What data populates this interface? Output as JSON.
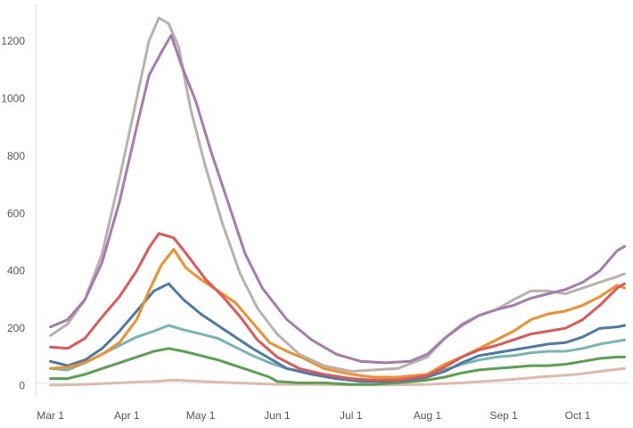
{
  "chart_data": {
    "type": "line",
    "title": "",
    "xlabel": "",
    "ylabel": "",
    "x_axis": {
      "scale": "date",
      "range": [
        "2020-02-24",
        "2020-10-22"
      ],
      "ticks": [
        {
          "date": "2020-03-01",
          "label": "Mar 1"
        },
        {
          "date": "2020-04-01",
          "label": "Apr 1"
        },
        {
          "date": "2020-05-01",
          "label": "May 1"
        },
        {
          "date": "2020-06-01",
          "label": "Jun 1"
        },
        {
          "date": "2020-07-01",
          "label": "Jul 1"
        },
        {
          "date": "2020-08-01",
          "label": "Aug 1"
        },
        {
          "date": "2020-09-01",
          "label": "Sep 1"
        },
        {
          "date": "2020-10-01",
          "label": "Oct 1"
        }
      ]
    },
    "y_axis": {
      "range": [
        -60,
        1330
      ],
      "ticks": [
        0,
        200,
        400,
        600,
        800,
        1000,
        1200
      ],
      "zero_line": "dotted"
    },
    "grid": false,
    "legend": "none",
    "series": [
      {
        "color": "#a77bac",
        "points": [
          [
            "2020-03-01",
            205
          ],
          [
            "2020-03-08",
            230
          ],
          [
            "2020-03-15",
            300
          ],
          [
            "2020-03-22",
            430
          ],
          [
            "2020-03-29",
            640
          ],
          [
            "2020-04-05",
            900
          ],
          [
            "2020-04-10",
            1080
          ],
          [
            "2020-04-15",
            1160
          ],
          [
            "2020-04-19",
            1220
          ],
          [
            "2020-04-23",
            1120
          ],
          [
            "2020-04-29",
            990
          ],
          [
            "2020-05-05",
            820
          ],
          [
            "2020-05-12",
            640
          ],
          [
            "2020-05-19",
            460
          ],
          [
            "2020-05-26",
            340
          ],
          [
            "2020-06-05",
            230
          ],
          [
            "2020-06-15",
            160
          ],
          [
            "2020-06-25",
            110
          ],
          [
            "2020-07-05",
            85
          ],
          [
            "2020-07-15",
            80
          ],
          [
            "2020-07-25",
            85
          ],
          [
            "2020-08-01",
            110
          ],
          [
            "2020-08-08",
            165
          ],
          [
            "2020-08-15",
            210
          ],
          [
            "2020-08-22",
            245
          ],
          [
            "2020-08-29",
            265
          ],
          [
            "2020-09-05",
            280
          ],
          [
            "2020-09-12",
            305
          ],
          [
            "2020-09-19",
            320
          ],
          [
            "2020-09-26",
            335
          ],
          [
            "2020-10-03",
            360
          ],
          [
            "2020-10-10",
            400
          ],
          [
            "2020-10-17",
            470
          ],
          [
            "2020-10-20",
            485
          ]
        ]
      },
      {
        "color": "#bab0ac",
        "points": [
          [
            "2020-03-01",
            175
          ],
          [
            "2020-03-08",
            215
          ],
          [
            "2020-03-15",
            300
          ],
          [
            "2020-03-22",
            460
          ],
          [
            "2020-03-29",
            720
          ],
          [
            "2020-04-05",
            1000
          ],
          [
            "2020-04-10",
            1200
          ],
          [
            "2020-04-14",
            1280
          ],
          [
            "2020-04-18",
            1260
          ],
          [
            "2020-04-22",
            1180
          ],
          [
            "2020-04-27",
            960
          ],
          [
            "2020-05-03",
            760
          ],
          [
            "2020-05-10",
            560
          ],
          [
            "2020-05-17",
            390
          ],
          [
            "2020-05-24",
            270
          ],
          [
            "2020-06-01",
            180
          ],
          [
            "2020-06-10",
            110
          ],
          [
            "2020-06-20",
            70
          ],
          [
            "2020-07-01",
            50
          ],
          [
            "2020-07-10",
            55
          ],
          [
            "2020-07-20",
            60
          ],
          [
            "2020-08-01",
            100
          ],
          [
            "2020-08-08",
            165
          ],
          [
            "2020-08-15",
            215
          ],
          [
            "2020-08-22",
            245
          ],
          [
            "2020-08-29",
            265
          ],
          [
            "2020-09-05",
            300
          ],
          [
            "2020-09-12",
            330
          ],
          [
            "2020-09-19",
            330
          ],
          [
            "2020-09-26",
            320
          ],
          [
            "2020-10-03",
            340
          ],
          [
            "2020-10-10",
            360
          ],
          [
            "2020-10-17",
            380
          ],
          [
            "2020-10-20",
            390
          ]
        ]
      },
      {
        "color": "#e15759",
        "points": [
          [
            "2020-03-01",
            135
          ],
          [
            "2020-03-08",
            130
          ],
          [
            "2020-03-15",
            165
          ],
          [
            "2020-03-22",
            240
          ],
          [
            "2020-03-29",
            310
          ],
          [
            "2020-04-05",
            400
          ],
          [
            "2020-04-10",
            480
          ],
          [
            "2020-04-14",
            530
          ],
          [
            "2020-04-20",
            515
          ],
          [
            "2020-04-26",
            450
          ],
          [
            "2020-05-03",
            370
          ],
          [
            "2020-05-10",
            310
          ],
          [
            "2020-05-17",
            240
          ],
          [
            "2020-05-24",
            160
          ],
          [
            "2020-06-01",
            100
          ],
          [
            "2020-06-10",
            60
          ],
          [
            "2020-06-20",
            40
          ],
          [
            "2020-07-01",
            25
          ],
          [
            "2020-07-10",
            20
          ],
          [
            "2020-07-20",
            20
          ],
          [
            "2020-08-01",
            35
          ],
          [
            "2020-08-08",
            65
          ],
          [
            "2020-08-15",
            100
          ],
          [
            "2020-08-22",
            125
          ],
          [
            "2020-08-29",
            140
          ],
          [
            "2020-09-05",
            160
          ],
          [
            "2020-09-12",
            180
          ],
          [
            "2020-09-19",
            190
          ],
          [
            "2020-09-26",
            200
          ],
          [
            "2020-10-03",
            230
          ],
          [
            "2020-10-10",
            280
          ],
          [
            "2020-10-17",
            340
          ],
          [
            "2020-10-20",
            355
          ]
        ]
      },
      {
        "color": "#f28e2b",
        "points": [
          [
            "2020-03-01",
            60
          ],
          [
            "2020-03-08",
            65
          ],
          [
            "2020-03-15",
            80
          ],
          [
            "2020-03-22",
            110
          ],
          [
            "2020-03-29",
            150
          ],
          [
            "2020-04-05",
            230
          ],
          [
            "2020-04-10",
            330
          ],
          [
            "2020-04-15",
            420
          ],
          [
            "2020-04-20",
            475
          ],
          [
            "2020-04-25",
            410
          ],
          [
            "2020-05-01",
            370
          ],
          [
            "2020-05-08",
            330
          ],
          [
            "2020-05-15",
            290
          ],
          [
            "2020-05-22",
            220
          ],
          [
            "2020-05-29",
            150
          ],
          [
            "2020-06-05",
            120
          ],
          [
            "2020-06-12",
            95
          ],
          [
            "2020-06-20",
            60
          ],
          [
            "2020-07-01",
            40
          ],
          [
            "2020-07-10",
            30
          ],
          [
            "2020-07-20",
            30
          ],
          [
            "2020-08-01",
            40
          ],
          [
            "2020-08-08",
            75
          ],
          [
            "2020-08-15",
            100
          ],
          [
            "2020-08-22",
            130
          ],
          [
            "2020-08-29",
            160
          ],
          [
            "2020-09-05",
            190
          ],
          [
            "2020-09-12",
            230
          ],
          [
            "2020-09-19",
            250
          ],
          [
            "2020-09-26",
            260
          ],
          [
            "2020-10-03",
            280
          ],
          [
            "2020-10-10",
            310
          ],
          [
            "2020-10-17",
            350
          ],
          [
            "2020-10-20",
            340
          ]
        ]
      },
      {
        "color": "#4e79a7",
        "points": [
          [
            "2020-03-01",
            85
          ],
          [
            "2020-03-08",
            70
          ],
          [
            "2020-03-15",
            90
          ],
          [
            "2020-03-22",
            130
          ],
          [
            "2020-03-29",
            190
          ],
          [
            "2020-04-05",
            260
          ],
          [
            "2020-04-12",
            330
          ],
          [
            "2020-04-18",
            355
          ],
          [
            "2020-04-24",
            300
          ],
          [
            "2020-05-01",
            250
          ],
          [
            "2020-05-08",
            210
          ],
          [
            "2020-05-15",
            170
          ],
          [
            "2020-05-22",
            130
          ],
          [
            "2020-05-29",
            95
          ],
          [
            "2020-06-05",
            60
          ],
          [
            "2020-06-15",
            40
          ],
          [
            "2020-06-25",
            25
          ],
          [
            "2020-07-05",
            15
          ],
          [
            "2020-07-15",
            15
          ],
          [
            "2020-07-25",
            20
          ],
          [
            "2020-08-01",
            30
          ],
          [
            "2020-08-08",
            50
          ],
          [
            "2020-08-15",
            80
          ],
          [
            "2020-08-22",
            105
          ],
          [
            "2020-08-29",
            115
          ],
          [
            "2020-09-05",
            125
          ],
          [
            "2020-09-12",
            135
          ],
          [
            "2020-09-19",
            145
          ],
          [
            "2020-09-26",
            150
          ],
          [
            "2020-10-03",
            170
          ],
          [
            "2020-10-10",
            200
          ],
          [
            "2020-10-17",
            205
          ],
          [
            "2020-10-20",
            210
          ]
        ]
      },
      {
        "color": "#76b7b2",
        "points": [
          [
            "2020-03-01",
            60
          ],
          [
            "2020-03-08",
            55
          ],
          [
            "2020-03-15",
            80
          ],
          [
            "2020-03-22",
            110
          ],
          [
            "2020-03-29",
            140
          ],
          [
            "2020-04-05",
            170
          ],
          [
            "2020-04-12",
            190
          ],
          [
            "2020-04-18",
            210
          ],
          [
            "2020-04-24",
            195
          ],
          [
            "2020-05-01",
            180
          ],
          [
            "2020-05-08",
            165
          ],
          [
            "2020-05-15",
            135
          ],
          [
            "2020-05-22",
            105
          ],
          [
            "2020-05-29",
            80
          ],
          [
            "2020-06-05",
            60
          ],
          [
            "2020-06-15",
            45
          ],
          [
            "2020-06-25",
            30
          ],
          [
            "2020-07-05",
            20
          ],
          [
            "2020-07-15",
            20
          ],
          [
            "2020-07-25",
            25
          ],
          [
            "2020-08-01",
            30
          ],
          [
            "2020-08-08",
            55
          ],
          [
            "2020-08-15",
            75
          ],
          [
            "2020-08-22",
            90
          ],
          [
            "2020-08-29",
            100
          ],
          [
            "2020-09-05",
            105
          ],
          [
            "2020-09-12",
            115
          ],
          [
            "2020-09-19",
            120
          ],
          [
            "2020-09-26",
            120
          ],
          [
            "2020-10-03",
            130
          ],
          [
            "2020-10-10",
            145
          ],
          [
            "2020-10-17",
            155
          ],
          [
            "2020-10-20",
            160
          ]
        ]
      },
      {
        "color": "#59a14f",
        "points": [
          [
            "2020-03-01",
            25
          ],
          [
            "2020-03-08",
            25
          ],
          [
            "2020-03-15",
            40
          ],
          [
            "2020-03-22",
            60
          ],
          [
            "2020-03-29",
            80
          ],
          [
            "2020-04-05",
            100
          ],
          [
            "2020-04-12",
            120
          ],
          [
            "2020-04-18",
            130
          ],
          [
            "2020-04-24",
            120
          ],
          [
            "2020-05-01",
            105
          ],
          [
            "2020-05-08",
            90
          ],
          [
            "2020-05-15",
            70
          ],
          [
            "2020-05-22",
            50
          ],
          [
            "2020-05-29",
            30
          ],
          [
            "2020-06-01",
            15
          ],
          [
            "2020-06-10",
            10
          ],
          [
            "2020-06-20",
            10
          ],
          [
            "2020-07-01",
            5
          ],
          [
            "2020-07-10",
            5
          ],
          [
            "2020-07-20",
            10
          ],
          [
            "2020-08-01",
            20
          ],
          [
            "2020-08-08",
            30
          ],
          [
            "2020-08-15",
            45
          ],
          [
            "2020-08-22",
            55
          ],
          [
            "2020-08-29",
            60
          ],
          [
            "2020-09-05",
            65
          ],
          [
            "2020-09-12",
            70
          ],
          [
            "2020-09-19",
            70
          ],
          [
            "2020-09-26",
            75
          ],
          [
            "2020-10-03",
            85
          ],
          [
            "2020-10-10",
            95
          ],
          [
            "2020-10-17",
            100
          ],
          [
            "2020-10-20",
            100
          ]
        ]
      },
      {
        "color": "#e0b8ac",
        "points": [
          [
            "2020-03-01",
            2
          ],
          [
            "2020-03-15",
            5
          ],
          [
            "2020-03-29",
            10
          ],
          [
            "2020-04-12",
            15
          ],
          [
            "2020-04-20",
            20
          ],
          [
            "2020-05-01",
            15
          ],
          [
            "2020-05-15",
            10
          ],
          [
            "2020-06-01",
            5
          ],
          [
            "2020-06-15",
            5
          ],
          [
            "2020-07-01",
            3
          ],
          [
            "2020-07-15",
            3
          ],
          [
            "2020-08-01",
            5
          ],
          [
            "2020-08-15",
            10
          ],
          [
            "2020-09-01",
            20
          ],
          [
            "2020-09-15",
            30
          ],
          [
            "2020-10-01",
            40
          ],
          [
            "2020-10-10",
            50
          ],
          [
            "2020-10-20",
            60
          ]
        ]
      }
    ]
  }
}
